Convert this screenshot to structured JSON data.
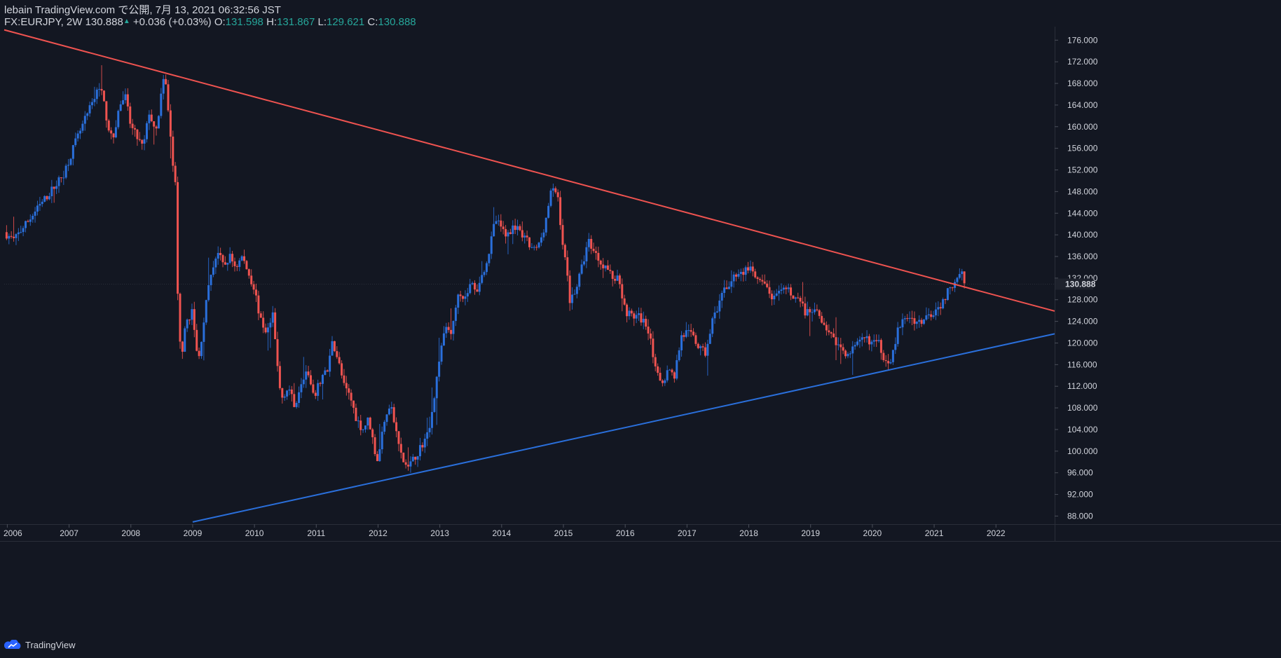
{
  "header": {
    "publisher": "lebain TradingView.com で公開, 7月 13, 2021 06:32:56 JST",
    "symbol": "FX:EURJPY, 2W",
    "last": "130.888",
    "change": "+0.036 (+0.03%)",
    "o_label": "O:",
    "o_value": "131.598",
    "h_label": "H:",
    "h_value": "131.867",
    "l_label": "L:",
    "l_value": "129.621",
    "c_label": "C:",
    "c_value": "130.888"
  },
  "brand": {
    "name": "TradingView",
    "icon": "tradingview-cloud-icon"
  },
  "colors": {
    "background": "#131722",
    "up": "#2a6fdb",
    "down": "#ef5350",
    "resistance": "#ef5350",
    "support": "#2a6fdb",
    "text": "#d1d4dc",
    "accent": "#26a69a"
  },
  "chart_data": {
    "type": "candlestick",
    "title": "FX:EURJPY, 2W",
    "interval": "2W",
    "x_ticks": [
      "2006",
      "2007",
      "2008",
      "2009",
      "2010",
      "2011",
      "2012",
      "2013",
      "2014",
      "2015",
      "2016",
      "2017",
      "2018",
      "2019",
      "2020",
      "2021",
      "2022"
    ],
    "y_ticks": [
      "88.000",
      "92.000",
      "96.000",
      "100.000",
      "104.000",
      "108.000",
      "112.000",
      "116.000",
      "120.000",
      "124.000",
      "128.000",
      "132.000",
      "136.000",
      "140.000",
      "144.000",
      "148.000",
      "152.000",
      "156.000",
      "160.000",
      "164.000",
      "168.000",
      "172.000",
      "176.000"
    ],
    "x_range": [
      2005.95,
      2022.95
    ],
    "ylim": [
      86.5,
      178.5
    ],
    "last_price_label": "130.888",
    "last_price": 130.888,
    "close_path": [
      [
        2005.95,
        140.5
      ],
      [
        2006.1,
        139
      ],
      [
        2006.3,
        142
      ],
      [
        2006.5,
        145
      ],
      [
        2006.7,
        148
      ],
      [
        2006.9,
        151
      ],
      [
        2007.0,
        154
      ],
      [
        2007.1,
        157
      ],
      [
        2007.25,
        161
      ],
      [
        2007.4,
        165
      ],
      [
        2007.5,
        168
      ],
      [
        2007.6,
        162
      ],
      [
        2007.7,
        157
      ],
      [
        2007.8,
        163
      ],
      [
        2007.9,
        166
      ],
      [
        2008.0,
        160
      ],
      [
        2008.1,
        158
      ],
      [
        2008.2,
        156
      ],
      [
        2008.3,
        163
      ],
      [
        2008.4,
        158
      ],
      [
        2008.5,
        167
      ],
      [
        2008.55,
        169
      ],
      [
        2008.6,
        164
      ],
      [
        2008.67,
        154
      ],
      [
        2008.72,
        149
      ],
      [
        2008.77,
        122
      ],
      [
        2008.82,
        118
      ],
      [
        2008.9,
        124
      ],
      [
        2009.0,
        126
      ],
      [
        2009.05,
        119
      ],
      [
        2009.1,
        117
      ],
      [
        2009.2,
        126
      ],
      [
        2009.3,
        133
      ],
      [
        2009.4,
        137
      ],
      [
        2009.5,
        134
      ],
      [
        2009.6,
        136
      ],
      [
        2009.7,
        134
      ],
      [
        2009.8,
        136
      ],
      [
        2009.9,
        133
      ],
      [
        2010.0,
        130
      ],
      [
        2010.1,
        124
      ],
      [
        2010.2,
        122
      ],
      [
        2010.3,
        125
      ],
      [
        2010.4,
        112
      ],
      [
        2010.45,
        110
      ],
      [
        2010.55,
        112
      ],
      [
        2010.65,
        108
      ],
      [
        2010.75,
        113
      ],
      [
        2010.85,
        115
      ],
      [
        2010.95,
        110
      ],
      [
        2011.0,
        111
      ],
      [
        2011.1,
        114
      ],
      [
        2011.2,
        115
      ],
      [
        2011.25,
        121
      ],
      [
        2011.35,
        117
      ],
      [
        2011.45,
        112
      ],
      [
        2011.55,
        110
      ],
      [
        2011.65,
        106
      ],
      [
        2011.75,
        104
      ],
      [
        2011.85,
        106
      ],
      [
        2011.95,
        100
      ],
      [
        2012.0,
        98
      ],
      [
        2012.1,
        106
      ],
      [
        2012.2,
        109
      ],
      [
        2012.3,
        103
      ],
      [
        2012.4,
        98
      ],
      [
        2012.5,
        97
      ],
      [
        2012.6,
        99
      ],
      [
        2012.7,
        101
      ],
      [
        2012.8,
        103
      ],
      [
        2012.9,
        109
      ],
      [
        2013.0,
        118
      ],
      [
        2013.1,
        123
      ],
      [
        2013.2,
        122
      ],
      [
        2013.3,
        130
      ],
      [
        2013.4,
        128
      ],
      [
        2013.5,
        131
      ],
      [
        2013.6,
        130
      ],
      [
        2013.7,
        133
      ],
      [
        2013.8,
        137
      ],
      [
        2013.9,
        143
      ],
      [
        2014.0,
        141
      ],
      [
        2014.1,
        140
      ],
      [
        2014.2,
        142
      ],
      [
        2014.3,
        140
      ],
      [
        2014.4,
        139
      ],
      [
        2014.5,
        137
      ],
      [
        2014.6,
        138
      ],
      [
        2014.7,
        142
      ],
      [
        2014.8,
        148
      ],
      [
        2014.9,
        148
      ],
      [
        2015.0,
        137
      ],
      [
        2015.05,
        134
      ],
      [
        2015.1,
        128
      ],
      [
        2015.2,
        130
      ],
      [
        2015.3,
        134
      ],
      [
        2015.4,
        139
      ],
      [
        2015.5,
        137
      ],
      [
        2015.6,
        135
      ],
      [
        2015.7,
        134
      ],
      [
        2015.8,
        132
      ],
      [
        2015.9,
        132
      ],
      [
        2016.0,
        126
      ],
      [
        2016.1,
        125
      ],
      [
        2016.2,
        125
      ],
      [
        2016.3,
        124
      ],
      [
        2016.4,
        122
      ],
      [
        2016.5,
        114
      ],
      [
        2016.6,
        113
      ],
      [
        2016.7,
        115
      ],
      [
        2016.8,
        114
      ],
      [
        2016.9,
        121
      ],
      [
        2017.0,
        122
      ],
      [
        2017.1,
        121
      ],
      [
        2017.2,
        119
      ],
      [
        2017.3,
        118
      ],
      [
        2017.4,
        124
      ],
      [
        2017.5,
        126
      ],
      [
        2017.6,
        130
      ],
      [
        2017.7,
        131
      ],
      [
        2017.8,
        133
      ],
      [
        2017.9,
        133
      ],
      [
        2018.0,
        134
      ],
      [
        2018.1,
        132
      ],
      [
        2018.2,
        131
      ],
      [
        2018.3,
        130
      ],
      [
        2018.4,
        128
      ],
      [
        2018.5,
        129
      ],
      [
        2018.6,
        130
      ],
      [
        2018.7,
        129
      ],
      [
        2018.8,
        128
      ],
      [
        2018.9,
        126
      ],
      [
        2019.0,
        125
      ],
      [
        2019.1,
        126
      ],
      [
        2019.2,
        124
      ],
      [
        2019.3,
        122
      ],
      [
        2019.4,
        120
      ],
      [
        2019.5,
        119
      ],
      [
        2019.6,
        118
      ],
      [
        2019.7,
        119
      ],
      [
        2019.8,
        120
      ],
      [
        2019.9,
        121
      ],
      [
        2020.0,
        120
      ],
      [
        2020.1,
        120
      ],
      [
        2020.2,
        117
      ],
      [
        2020.3,
        117
      ],
      [
        2020.35,
        119
      ],
      [
        2020.4,
        122
      ],
      [
        2020.5,
        124
      ],
      [
        2020.6,
        125
      ],
      [
        2020.7,
        124
      ],
      [
        2020.8,
        124
      ],
      [
        2020.9,
        125
      ],
      [
        2021.0,
        126
      ],
      [
        2021.1,
        127
      ],
      [
        2021.2,
        129
      ],
      [
        2021.3,
        131
      ],
      [
        2021.4,
        133
      ],
      [
        2021.45,
        134
      ],
      [
        2021.5,
        131
      ]
    ],
    "trendlines": [
      {
        "name": "resistance",
        "color": "#ef5350",
        "from": [
          2005.95,
          177.9
        ],
        "to": [
          2022.95,
          125.9
        ]
      },
      {
        "name": "support",
        "color": "#2a6fdb",
        "from": [
          2009.0,
          86.9
        ],
        "to": [
          2022.95,
          121.7
        ]
      }
    ]
  }
}
